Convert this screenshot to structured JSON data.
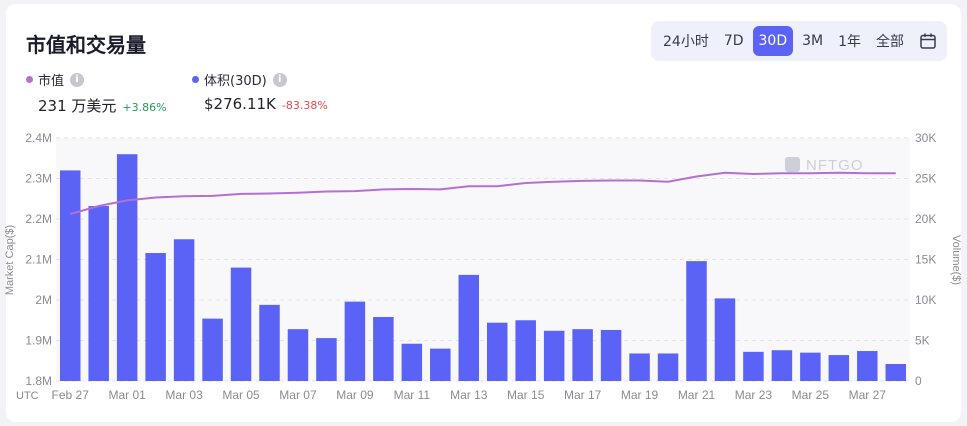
{
  "header": {
    "title": "市值和交易量"
  },
  "range": {
    "options": [
      "24小时",
      "7D",
      "30D",
      "3M",
      "1年",
      "全部"
    ],
    "active": "30D"
  },
  "stats": {
    "market_cap": {
      "label": "市值",
      "value": "231 万美元",
      "change": "+3.86%",
      "color": "#b56fd4",
      "change_color": "#1f9d55"
    },
    "volume": {
      "label": "体积(30D)",
      "value": "$276.11K",
      "change": "-83.38%",
      "color": "#5b63f6",
      "change_color": "#e5484d"
    }
  },
  "watermark": "NFTGO",
  "chart_data": {
    "type": "bar+line",
    "x_origin_label": "UTC",
    "categories": [
      "Feb 27",
      "Feb 28",
      "Mar 01",
      "Mar 02",
      "Mar 03",
      "Mar 04",
      "Mar 05",
      "Mar 06",
      "Mar 07",
      "Mar 08",
      "Mar 09",
      "Mar 10",
      "Mar 11",
      "Mar 12",
      "Mar 13",
      "Mar 14",
      "Mar 15",
      "Mar 16",
      "Mar 17",
      "Mar 18",
      "Mar 19",
      "Mar 20",
      "Mar 21",
      "Mar 22",
      "Mar 23",
      "Mar 24",
      "Mar 25",
      "Mar 26",
      "Mar 27",
      "Mar 28"
    ],
    "x_tick_labels": [
      "Feb 27",
      "Mar 01",
      "Mar 03",
      "Mar 05",
      "Mar 07",
      "Mar 09",
      "Mar 11",
      "Mar 13",
      "Mar 15",
      "Mar 17",
      "Mar 19",
      "Mar 21",
      "Mar 23",
      "Mar 25",
      "Mar 27"
    ],
    "volume": {
      "name": "体积",
      "color": "#5b63f6",
      "values": [
        26000,
        21600,
        28000,
        15800,
        17500,
        7700,
        14000,
        9400,
        6400,
        5300,
        9800,
        7900,
        4600,
        4000,
        13100,
        7200,
        7500,
        6200,
        6400,
        6300,
        3400,
        3400,
        14800,
        10200,
        3600,
        3800,
        3500,
        3200,
        3700,
        2100
      ]
    },
    "market_cap": {
      "name": "市值",
      "color": "#b56fd4",
      "values": [
        2.212,
        2.232,
        2.246,
        2.253,
        2.256,
        2.257,
        2.262,
        2.263,
        2.265,
        2.268,
        2.269,
        2.273,
        2.274,
        2.273,
        2.281,
        2.281,
        2.289,
        2.292,
        2.294,
        2.295,
        2.295,
        2.292,
        2.305,
        2.314,
        2.311,
        2.313,
        2.313,
        2.314,
        2.313,
        2.313
      ]
    },
    "left_axis": {
      "label": "Market Cap($)",
      "min": 1.8,
      "max": 2.4,
      "ticks": [
        "1.8M",
        "1.9M",
        "2M",
        "2.1M",
        "2.2M",
        "2.3M",
        "2.4M"
      ]
    },
    "right_axis": {
      "label": "Volume($)",
      "min": 0,
      "max": 30000,
      "ticks": [
        "0",
        "5K",
        "10K",
        "15K",
        "20K",
        "25K",
        "30K"
      ]
    },
    "grid": true
  }
}
